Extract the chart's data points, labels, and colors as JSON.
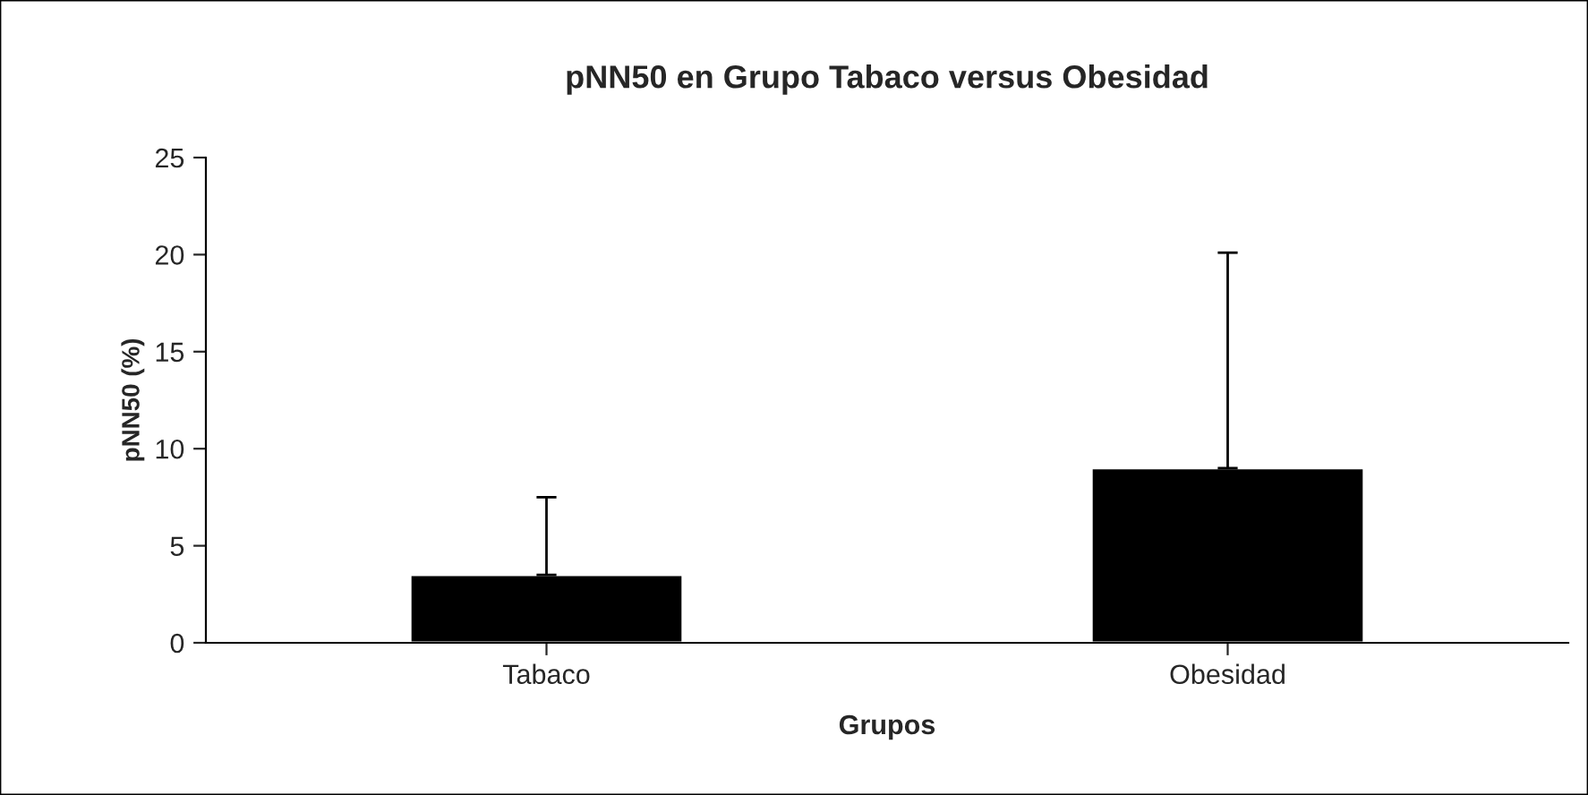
{
  "chart_data": {
    "type": "bar",
    "title": "pNN50 en Grupo Tabaco versus Obesidad",
    "xlabel": "Grupos",
    "ylabel": "pNN50 (%)",
    "categories": [
      "Tabaco",
      "Obesidad"
    ],
    "values": [
      3.5,
      9
    ],
    "errors": [
      [
        3.5,
        7.5
      ],
      [
        9,
        20.1
      ]
    ],
    "color": "#000000",
    "ylim": [
      0,
      25
    ],
    "yticks": [
      0,
      5,
      10,
      15,
      20,
      25
    ],
    "grid": false,
    "legend": false
  }
}
